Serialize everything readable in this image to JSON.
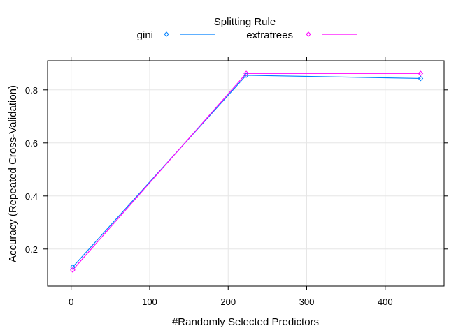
{
  "chart_data": {
    "type": "line",
    "legend": {
      "title": "Splitting Rule",
      "placement": "top-center"
    },
    "xlabel": "#Randomly Selected Predictors",
    "ylabel": "Accuracy (Repeated Cross-Validation)",
    "xlim": [
      -30,
      475
    ],
    "ylim": [
      0.06,
      0.91
    ],
    "xticks": [
      0,
      100,
      200,
      300,
      400
    ],
    "xtick_labels": [
      "0",
      "100",
      "200",
      "300",
      "400"
    ],
    "yticks": [
      0.2,
      0.4,
      0.6,
      0.8
    ],
    "ytick_labels": [
      "0.2",
      "0.4",
      "0.6",
      "0.8"
    ],
    "grid": true,
    "x": [
      2,
      223,
      445
    ],
    "series": [
      {
        "name": "gini",
        "color": "#0080ff",
        "marker": "diamond",
        "values": [
          0.132,
          0.855,
          0.843
        ]
      },
      {
        "name": "extratrees",
        "color": "#ff00ff",
        "marker": "diamond",
        "values": [
          0.121,
          0.862,
          0.862
        ]
      }
    ]
  }
}
